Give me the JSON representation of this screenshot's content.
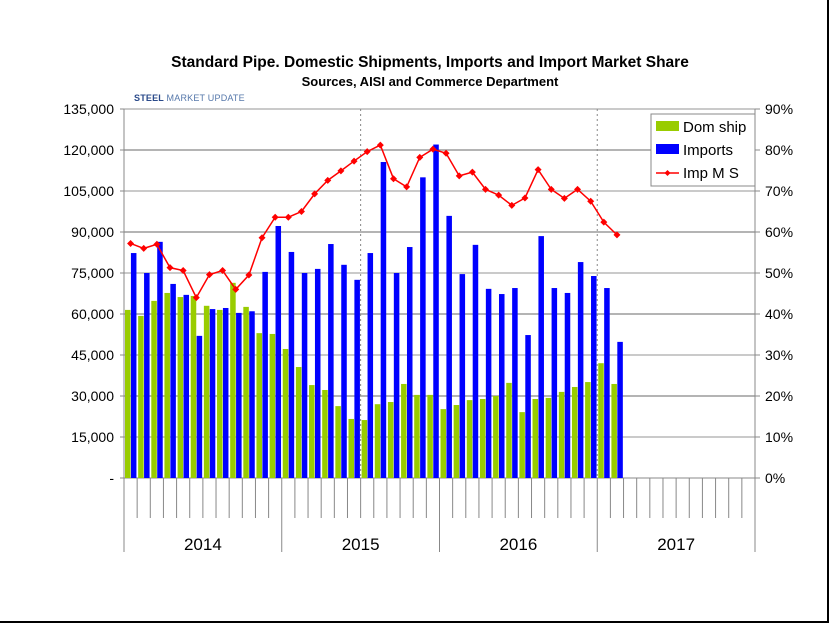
{
  "chart_data": {
    "type": "bar+line",
    "title": "Standard Pipe. Domestic Shipments, Imports and Import Market Share",
    "subtitle": "Sources, AISI and Commerce Department",
    "logo_text": "STEEL MARKET UPDATE",
    "x_period": "monthly",
    "year_labels": [
      "2014",
      "2015",
      "2016",
      "2017"
    ],
    "months_per_year": 12,
    "dotted_markers": [
      "2015-07",
      "2017-01"
    ],
    "y_left": {
      "min": 0,
      "max": 135000,
      "step": 15000,
      "tick_labels": [
        "-",
        "15,000",
        "30,000",
        "45,000",
        "60,000",
        "75,000",
        "90,000",
        "105,000",
        "120,000",
        "135,000"
      ]
    },
    "y_right": {
      "min": 0,
      "max": 90,
      "step": 10,
      "unit": "%",
      "tick_labels": [
        "0%",
        "10%",
        "20%",
        "30%",
        "40%",
        "50%",
        "60%",
        "70%",
        "80%",
        "90%"
      ]
    },
    "grid": true,
    "legend_position": "top-right",
    "series": [
      {
        "name": "Dom ship",
        "type": "bar",
        "axis": "left",
        "color": "#99cc00",
        "values": [
          61500,
          59300,
          64800,
          67700,
          66200,
          66600,
          63000,
          61500,
          71400,
          62600,
          53000,
          52700,
          47200,
          40600,
          34000,
          32200,
          26300,
          21600,
          21200,
          27000,
          27800,
          34400,
          30400,
          30400,
          25200,
          26700,
          28500,
          28900,
          30000,
          34800,
          24100,
          28900,
          29300,
          31500,
          33300,
          35100,
          42000,
          34400
        ]
      },
      {
        "name": "Imports",
        "type": "bar",
        "axis": "left",
        "color": "#0000ff",
        "values": [
          82300,
          75000,
          86400,
          71000,
          67000,
          52000,
          61800,
          62200,
          60400,
          61000,
          75400,
          92200,
          82700,
          75000,
          76500,
          85600,
          78000,
          72500,
          82300,
          115600,
          75000,
          84500,
          110000,
          122000,
          95900,
          74600,
          85300,
          69200,
          67300,
          69500,
          52300,
          88500,
          69500,
          67700,
          79000,
          73900,
          69500,
          49800
        ]
      },
      {
        "name": "Imp M S",
        "type": "line",
        "axis": "right",
        "color": "#ff0000",
        "values": [
          57.2,
          56.0,
          57.0,
          51.3,
          50.6,
          44.0,
          49.6,
          50.6,
          46.0,
          49.5,
          58.6,
          63.6,
          63.6,
          65.0,
          69.3,
          72.6,
          74.9,
          77.3,
          79.6,
          81.2,
          73.0,
          71.0,
          78.2,
          80.2,
          79.2,
          73.7,
          74.6,
          70.4,
          69.0,
          66.5,
          68.3,
          75.2,
          70.4,
          68.2,
          70.4,
          67.5,
          62.4,
          59.3
        ]
      }
    ]
  }
}
